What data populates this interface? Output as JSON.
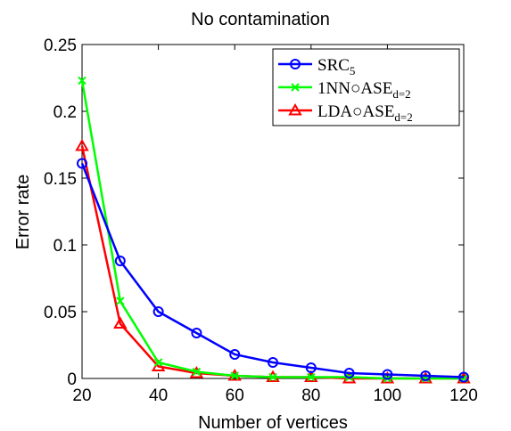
{
  "chart_data": {
    "type": "line",
    "title": "No contamination",
    "xlabel": "Number of vertices",
    "ylabel": "Error rate",
    "xlim": [
      20,
      120
    ],
    "ylim": [
      0,
      0.25
    ],
    "xticks": [
      20,
      40,
      60,
      80,
      100,
      120
    ],
    "yticks": [
      0,
      0.05,
      0.1,
      0.15,
      0.2,
      0.25
    ],
    "xtick_labels": [
      "20",
      "40",
      "60",
      "80",
      "100",
      "120"
    ],
    "ytick_labels": [
      "0",
      "0.05",
      "0.1",
      "0.15",
      "0.2",
      "0.25"
    ],
    "x": [
      20,
      30,
      40,
      50,
      60,
      70,
      80,
      90,
      100,
      110,
      120
    ],
    "grid": false,
    "legend_position": "top-right",
    "series": [
      {
        "name": "SRC",
        "name_sub": "5",
        "color": "#0000ff",
        "marker": "circle",
        "values": [
          0.161,
          0.088,
          0.05,
          0.034,
          0.018,
          0.012,
          0.008,
          0.004,
          0.003,
          0.002,
          0.001
        ]
      },
      {
        "name": "1NN○ASE",
        "name_sub": "d=2",
        "color": "#00ff00",
        "marker": "x",
        "values": [
          0.223,
          0.058,
          0.012,
          0.005,
          0.002,
          0.001,
          0.001,
          0.001,
          0.0,
          0.0,
          0.0
        ]
      },
      {
        "name": "LDA○ASE",
        "name_sub": "d=2",
        "color": "#ff0000",
        "marker": "triangle",
        "values": [
          0.174,
          0.041,
          0.009,
          0.004,
          0.002,
          0.001,
          0.001,
          0.0,
          0.0,
          0.0,
          0.0
        ]
      }
    ]
  }
}
